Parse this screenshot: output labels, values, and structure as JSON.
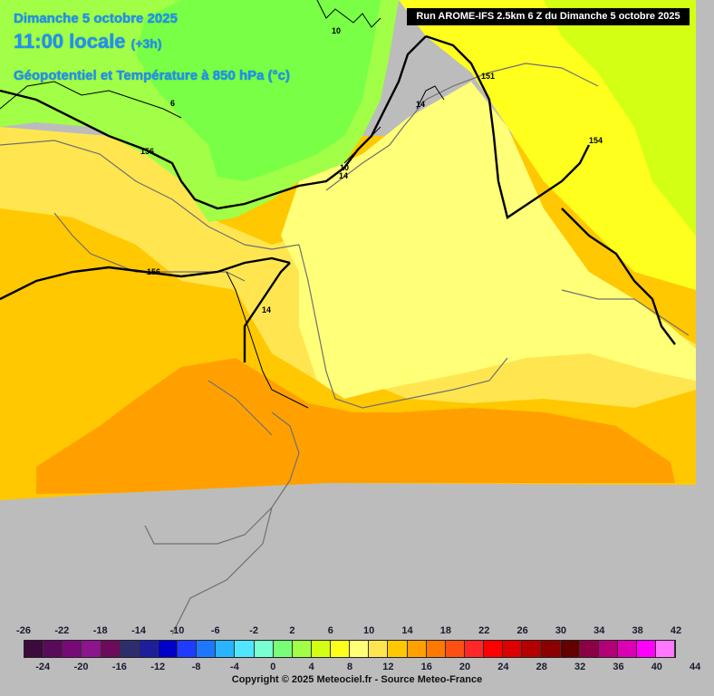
{
  "header": {
    "date": "Dimanche 5 octobre 2025",
    "time": "11:00 locale",
    "lead": "(+3h)",
    "variable": "Géopotentiel et Température à 850 hPa (°c)"
  },
  "run_label": "Run AROME-IFS 2.5km 6 Z du Dimanche 5 octobre 2025",
  "map": {
    "isotherm_labels": [
      "10",
      "6",
      "14",
      "10",
      "14",
      "14"
    ],
    "geopotential_labels": [
      "151",
      "154",
      "156",
      "156"
    ]
  },
  "scale": {
    "top_labels": [
      "-26",
      "-22",
      "-18",
      "-14",
      "-10",
      "-6",
      "-2",
      "2",
      "6",
      "10",
      "14",
      "18",
      "22",
      "26",
      "30",
      "34",
      "38",
      "42"
    ],
    "bottom_labels": [
      "-24",
      "-20",
      "-16",
      "-12",
      "-8",
      "-4",
      "0",
      "4",
      "8",
      "12",
      "16",
      "20",
      "24",
      "28",
      "32",
      "36",
      "40",
      "44"
    ],
    "colors": [
      "#3c0a3c",
      "#5a0a5a",
      "#780a78",
      "#8c148c",
      "#6e0a5a",
      "#2d2d6e",
      "#1e1e9b",
      "#0000c8",
      "#1e3cff",
      "#1e78ff",
      "#28b4ff",
      "#50e6ff",
      "#78ffd2",
      "#78ff78",
      "#a0ff46",
      "#d2ff14",
      "#ffff1e",
      "#ffff78",
      "#ffe650",
      "#ffc800",
      "#ffa000",
      "#ff7800",
      "#ff5014",
      "#ff2828",
      "#ff0000",
      "#dc0000",
      "#b40000",
      "#8c0000",
      "#640000",
      "#8c0046",
      "#b40078",
      "#dc00b4",
      "#ff00ff",
      "#ff78ff"
    ]
  },
  "copyright": "Copyright © 2025 Meteociel.fr - Source Meteo-France"
}
